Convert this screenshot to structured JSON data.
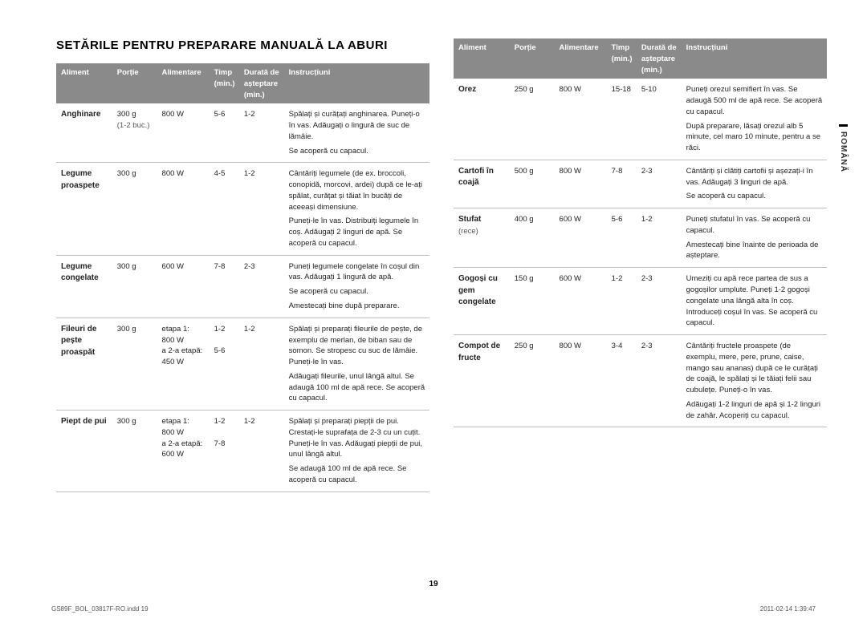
{
  "title": "SETĂRILE PENTRU PREPARARE MANUALĂ LA ABURI",
  "headers": {
    "aliment": "Aliment",
    "portie": "Porție",
    "alimentare": "Alimentare",
    "timp": "Timp (min.)",
    "durata": "Durată de așteptare (min.)",
    "instructiuni": "Instrucțiuni"
  },
  "left": [
    {
      "aliment": "Anghinare",
      "alimentSub": "",
      "portie": "300 g",
      "portieSub": "(1-2 buc.)",
      "alimentare": "800 W",
      "timp": "5-6",
      "durata": "1-2",
      "instr": [
        "Spălați și curățați anghinarea. Puneți-o în vas. Adăugați o lingură de suc de lămâie.",
        "Se acoperă cu capacul."
      ]
    },
    {
      "aliment": "Legume proaspete",
      "portie": "300 g",
      "alimentare": "800 W",
      "timp": "4-5",
      "durata": "1-2",
      "instr": [
        "Cântăriți legumele (de ex. broccoli, conopidă, morcovi, ardei) după ce le-ați spălat, curățat și tăiat în bucăți de aceeași dimensiune.",
        "Puneți-le în vas. Distribuiți legumele în coș. Adăugați 2 linguri de apă. Se acoperă cu capacul."
      ]
    },
    {
      "aliment": "Legume congelate",
      "portie": "300 g",
      "alimentare": "600 W",
      "timp": "7-8",
      "durata": "2-3",
      "instr": [
        "Puneți legumele congelate în coșul din vas. Adăugați 1 lingură de apă.",
        "Se acoperă cu capacul.",
        "Amestecați bine după preparare."
      ]
    },
    {
      "aliment": "Fileuri de pește proaspăt",
      "portie": "300 g",
      "alimentare": "etapa 1:\n800 W\na 2-a etapă:\n450 W",
      "timp": "1-2\n\n5-6",
      "durata": "1-2",
      "instr": [
        "Spălați și preparați fileurile de pește, de exemplu de merlan, de biban sau de somon. Se stropesc cu suc de lămâie. Puneți-le în vas.",
        "Adăugați fileurile, unul lângă altul. Se adaugă 100 ml de apă rece. Se acoperă cu capacul."
      ]
    },
    {
      "aliment": "Piept de pui",
      "portie": "300 g",
      "alimentare": "etapa 1:\n800 W\na 2-a etapă:\n600 W",
      "timp": "1-2\n\n7-8",
      "durata": "1-2",
      "instr": [
        "Spălați și preparați piepții de pui. Crestați-le suprafața de 2-3 cu un cuțit. Puneți-le în vas. Adăugați piepții de pui, unul lângă altul.",
        "Se adaugă 100 ml de apă rece. Se acoperă cu capacul."
      ]
    }
  ],
  "right": [
    {
      "aliment": "Orez",
      "portie": "250 g",
      "alimentare": "800 W",
      "timp": "15-18",
      "durata": "5-10",
      "instr": [
        "Puneți orezul semifiert în vas. Se adaugă 500 ml de apă rece. Se acoperă cu capacul.",
        "După preparare, lăsați orezul alb 5 minute, cel maro 10 minute, pentru a se răci."
      ]
    },
    {
      "aliment": "Cartofi în coajă",
      "portie": "500 g",
      "alimentare": "800 W",
      "timp": "7-8",
      "durata": "2-3",
      "instr": [
        "Cântăriți și clătiți cartofii și așezați-i în vas. Adăugați 3 linguri de apă.",
        "Se acoperă cu capacul."
      ]
    },
    {
      "aliment": "Stufat",
      "alimentSub": "(rece)",
      "portie": "400 g",
      "alimentare": "600 W",
      "timp": "5-6",
      "durata": "1-2",
      "instr": [
        "Puneți stufatul în vas. Se acoperă cu capacul.",
        "Amestecați bine înainte de perioada de așteptare."
      ]
    },
    {
      "aliment": "Gogoși cu gem congelate",
      "portie": "150 g",
      "alimentare": "600 W",
      "timp": "1-2",
      "durata": "2-3",
      "instr": [
        "Umeziți cu apă rece partea de sus a gogoșilor umplute. Puneți 1-2 gogoși congelate una lângă alta în coș. Introduceți coșul în vas. Se acoperă cu capacul."
      ]
    },
    {
      "aliment": "Compot de fructe",
      "portie": "250 g",
      "alimentare": "800 W",
      "timp": "3-4",
      "durata": "2-3",
      "instr": [
        "Cântăriți fructele proaspete (de exemplu, mere, pere, prune, caise, mango sau ananas) după ce le curățați de coajă, le spălați și le tăiați felii sau cubulețe. Puneți-o în vas.",
        "Adăugați 1-2 linguri de apă și 1-2 linguri de zahăr. Acoperiți cu capacul."
      ]
    }
  ],
  "sidelabel": "ROMÂNĂ",
  "pagenum": "19",
  "footerLeft": "GS89F_BOL_03817F-RO.indd   19",
  "footerRight": "2011-02-14   1:39:47"
}
